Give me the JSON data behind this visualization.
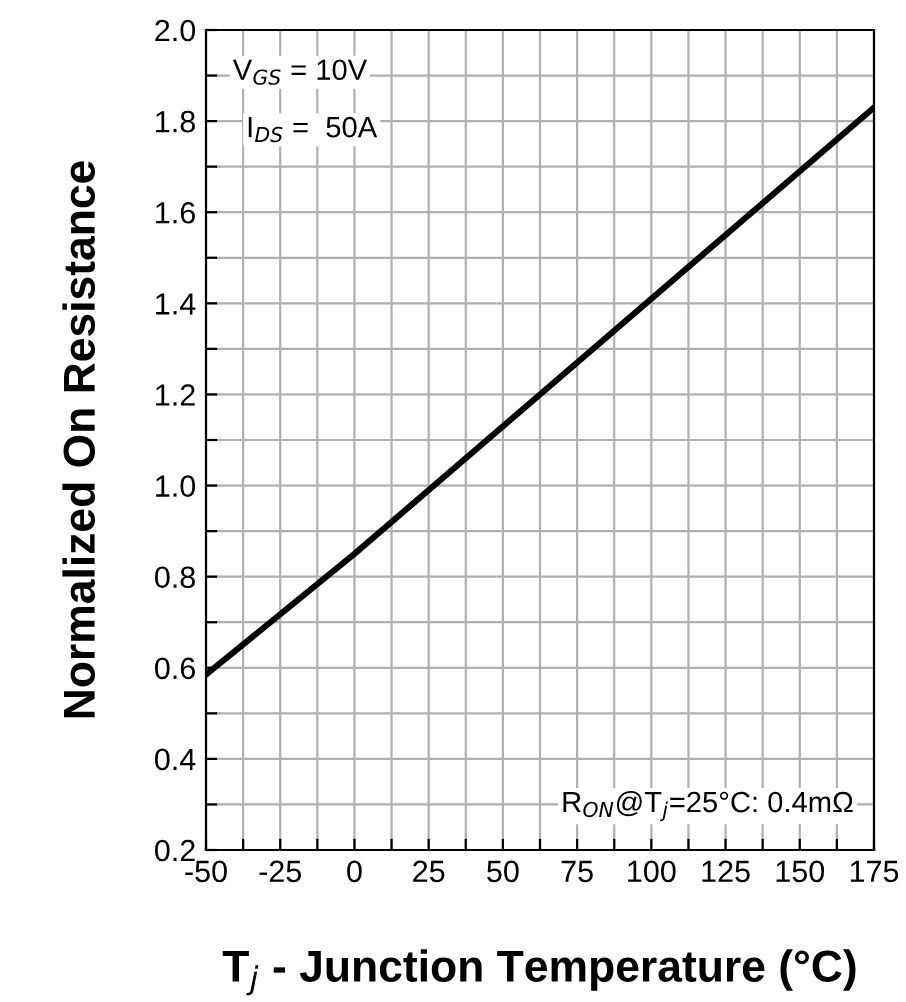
{
  "chart_data": {
    "type": "line",
    "xlabel": "T$_{j}$ - Junction Temperature (°C)",
    "ylabel": "Normalized On Resistance",
    "annotations": [
      "V$_{GS}$ = 10V",
      "I$_{DS}$ =  50A",
      "R$_{ON}$@T$_{j}$=25°C: 0.4mΩ"
    ],
    "series": [
      {
        "color": "#000000",
        "x": [
          -50,
          0,
          175
        ],
        "values": [
          0.585,
          0.85,
          1.83
        ]
      }
    ],
    "xlim": [
      -50,
      175
    ],
    "ylim": [
      0.2,
      2.0
    ],
    "xticks": [
      -50,
      {
        "value": -37.5,
        "label": null
      },
      -25,
      {
        "value": -12.5,
        "label": null
      },
      0,
      {
        "value": 12.5,
        "label": null
      },
      25,
      {
        "value": 37.5,
        "label": null
      },
      50,
      {
        "value": 62.5,
        "label": null
      },
      75,
      {
        "value": 87.5,
        "label": null
      },
      100,
      {
        "value": 112.5,
        "label": null
      },
      125,
      {
        "value": 137.5,
        "label": null
      },
      150,
      {
        "value": 162.5,
        "label": null
      },
      175
    ],
    "yticks": [
      {
        "value": 0.2,
        "label": "0.2"
      },
      {
        "value": 0.3,
        "label": null
      },
      {
        "value": 0.4,
        "label": "0.4"
      },
      {
        "value": 0.5,
        "label": null
      },
      {
        "value": 0.6,
        "label": "0.6"
      },
      {
        "value": 0.7,
        "label": null
      },
      {
        "value": 0.8,
        "label": "0.8"
      },
      {
        "value": 0.9,
        "label": null
      },
      {
        "value": 1.0,
        "label": "1.0"
      },
      {
        "value": 1.1,
        "label": null
      },
      {
        "value": 1.2,
        "label": "1.2"
      },
      {
        "value": 1.3,
        "label": null
      },
      {
        "value": 1.4,
        "label": "1.4"
      },
      {
        "value": 1.5,
        "label": null
      },
      {
        "value": 1.6,
        "label": "1.6"
      },
      {
        "value": 1.7,
        "label": null
      },
      {
        "value": 1.8,
        "label": "1.8"
      },
      {
        "value": 1.9,
        "label": null
      },
      {
        "value": 2.0,
        "label": "2.0"
      }
    ],
    "grid": true,
    "line_style": "solid",
    "marker": "none"
  }
}
